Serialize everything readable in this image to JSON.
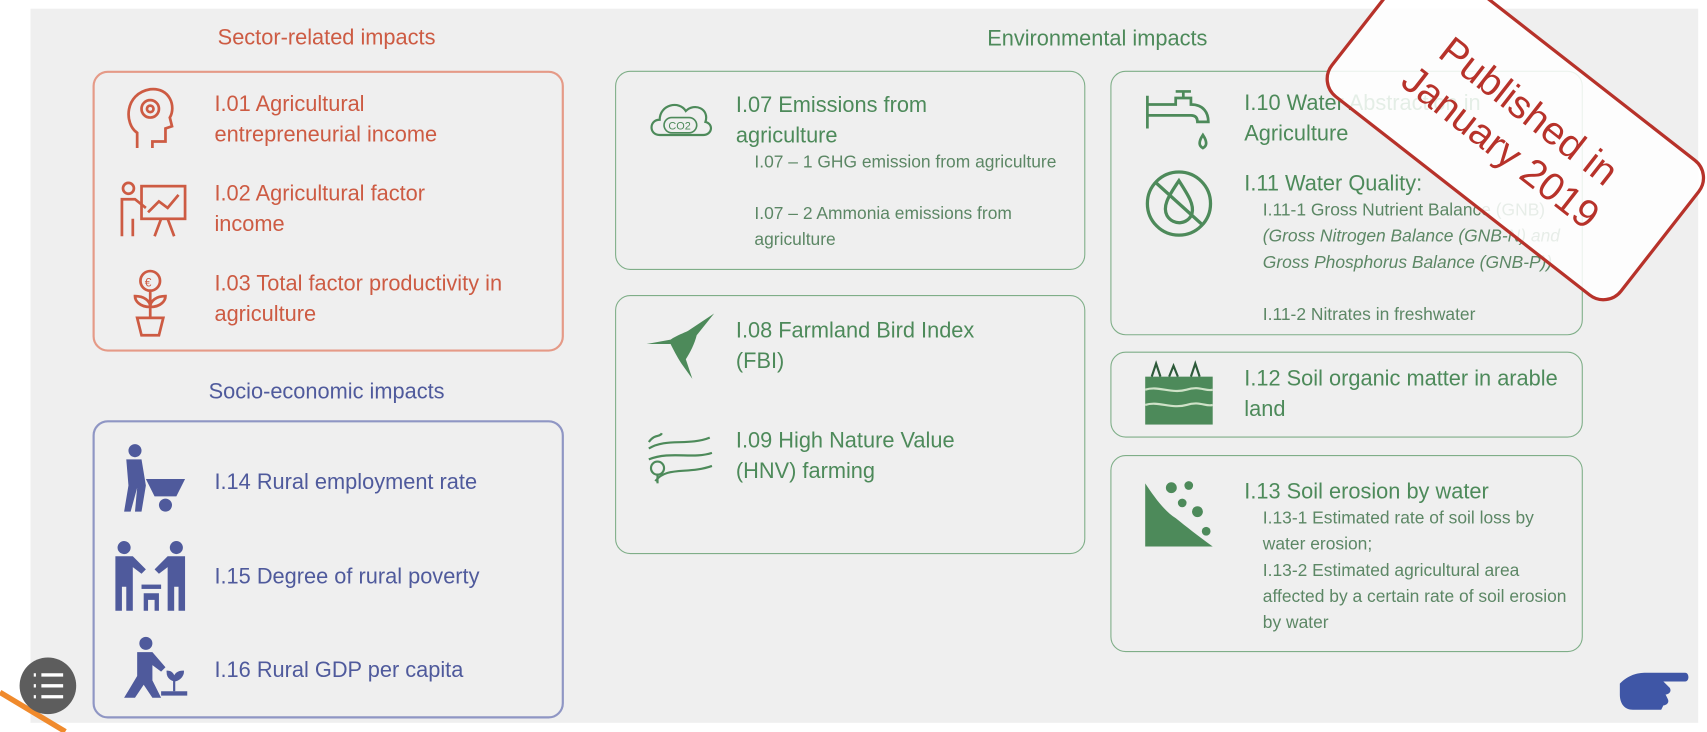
{
  "sector": {
    "title": "Sector-related impacts",
    "items": [
      {
        "label": "I.01 Agricultural entrepreneurial income"
      },
      {
        "label": "I.02 Agricultural factor income"
      },
      {
        "label": "I.03 Total factor productivity in agriculture"
      }
    ]
  },
  "socio": {
    "title": "Socio-economic impacts",
    "items": [
      {
        "label": "I.14 Rural employment rate"
      },
      {
        "label": "I.15 Degree of rural poverty"
      },
      {
        "label": "I.16 Rural GDP per capita"
      }
    ]
  },
  "environmental": {
    "title": "Environmental impacts",
    "items": [
      {
        "label": "I.07 Emissions from agriculture",
        "subitems": [
          {
            "text": "I.07 – 1 GHG emission from agriculture"
          },
          {
            "text": "I.07 – 2 Ammonia emissions from agriculture"
          }
        ]
      },
      {
        "label": "I.08 Farmland Bird Index (FBI)"
      },
      {
        "label": "I.09 High Nature Value (HNV) farming"
      },
      {
        "label": "I.10 Water Abstraction in Agriculture"
      },
      {
        "label": "I.11 Water Quality:",
        "subitems": [
          {
            "text": "I.11-1 Gross Nutrient Balance (GNB)",
            "italic": "(Gross Nitrogen Balance (GNB-N) and Gross Phosphorus Balance (GNB-P))"
          },
          {
            "text": "I.11-2 Nitrates in freshwater"
          }
        ]
      },
      {
        "label": "I.12 Soil organic matter in arable land"
      },
      {
        "label": "I.13 Soil erosion by water",
        "subitems": [
          {
            "text": "I.13-1 Estimated rate of soil loss by water erosion;"
          },
          {
            "text": "I.13-2 Estimated agricultural area affected by a certain rate of soil erosion by water"
          }
        ]
      }
    ]
  },
  "stamp": [
    "Published in",
    "January 2019"
  ]
}
